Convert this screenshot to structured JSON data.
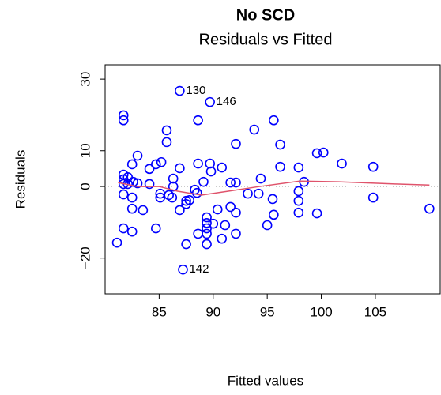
{
  "chart_data": {
    "type": "scatter",
    "title": "No SCD",
    "subtitle": "Residuals vs Fitted",
    "x_label": "Fitted values",
    "y_label": "Residuals",
    "xlim": [
      80,
      111
    ],
    "ylim": [
      -30,
      34
    ],
    "xticks": [
      85,
      90,
      95,
      100,
      105
    ],
    "yticks": [
      {
        "value": -20,
        "label": "−20"
      },
      0,
      10,
      30
    ],
    "zero_line": true,
    "series": [
      {
        "color": "#0000ff",
        "x": [
          86.9,
          89.7,
          87.2,
          81.7,
          81.7,
          85.7,
          85.7,
          88.6,
          93.8,
          95.6,
          92.1,
          96.2,
          83.0,
          82.5,
          84.1,
          84.7,
          85.2,
          86.9,
          88.6,
          89.7,
          89.8,
          90.8,
          96.2,
          97.9,
          99.6,
          100.2,
          101.9,
          104.8,
          81.7,
          81.7,
          82.1,
          81.7,
          82.1,
          82.6,
          83.0,
          84.1,
          86.3,
          86.3,
          89.1,
          91.6,
          92.1,
          94.4,
          98.4,
          81.7,
          82.5,
          85.1,
          85.1,
          85.9,
          86.2,
          88.3,
          88.5,
          87.8,
          87.5,
          87.5,
          94.2,
          95.5,
          97.9,
          97.9,
          93.2,
          83.5,
          86.9,
          90.4,
          91.6,
          92.1,
          82.5,
          95.6,
          97.9,
          99.6,
          104.8,
          110.0,
          89.4,
          89.4,
          89.4,
          90.0,
          91.1,
          95.0,
          81.7,
          82.5,
          84.7,
          88.6,
          89.4,
          90.8,
          87.5,
          89.4,
          81.1,
          92.1
        ],
        "values": [
          26.7,
          23.6,
          -23.2,
          19.9,
          18.5,
          15.7,
          12.4,
          18.5,
          15.9,
          18.5,
          11.9,
          11.7,
          8.6,
          6.2,
          4.9,
          6.2,
          6.8,
          5.1,
          6.4,
          6.4,
          4.2,
          5.3,
          5.5,
          5.3,
          9.3,
          9.5,
          6.4,
          5.5,
          3.3,
          2.0,
          2.6,
          0.7,
          0.7,
          1.3,
          0.9,
          0.7,
          2.2,
          0,
          1.3,
          1.1,
          1.1,
          2.2,
          1.3,
          -2.2,
          -3.1,
          -2.0,
          -3.1,
          -2.4,
          -3.1,
          -0.9,
          -1.8,
          -3.8,
          -4.9,
          -4.0,
          -2.0,
          -3.5,
          -1.3,
          -4.0,
          -2.0,
          -6.6,
          -6.6,
          -6.4,
          -5.7,
          -7.3,
          -6.2,
          -7.9,
          -7.3,
          -7.5,
          -3.1,
          -6.2,
          -8.6,
          -10.2,
          -11.7,
          -10.4,
          -10.8,
          -10.8,
          -11.7,
          -12.6,
          -11.7,
          -13.2,
          -13.2,
          -14.6,
          -16.1,
          -16.1,
          -15.7,
          -13.2
        ]
      }
    ],
    "smooth": {
      "color": "#df536b",
      "x": [
        81.2,
        83,
        85,
        86.7,
        88.9,
        91.4,
        94.3,
        98,
        101.6,
        106.8,
        110
      ],
      "values": [
        1.1,
        0,
        0,
        -1.3,
        -2.4,
        -1.3,
        0,
        1.5,
        1.3,
        0.7,
        0.4
      ]
    },
    "annotations": [
      {
        "text": "130",
        "point": 0
      },
      {
        "text": "146",
        "point": 1
      },
      {
        "text": "142",
        "point": 2
      }
    ]
  }
}
